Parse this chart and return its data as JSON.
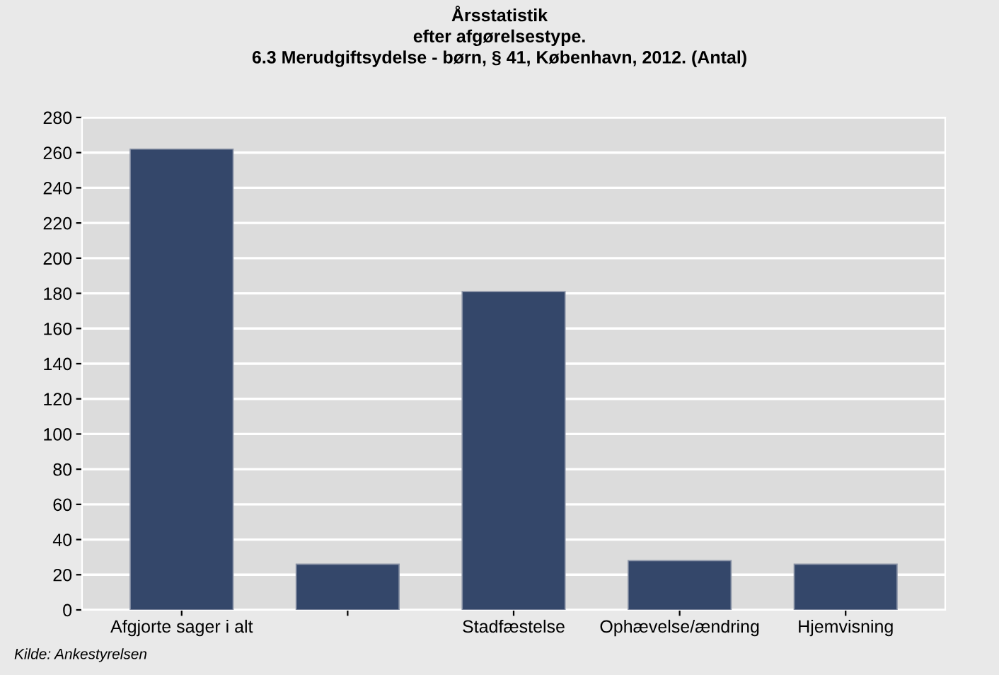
{
  "chart_data": {
    "type": "bar",
    "title": "Årsstatistik\nefter afgørelsestype.\n6.3 Merudgiftsydelse - børn, § 41, København, 2012. (Antal)",
    "categories": [
      "Afgjorte sager i alt",
      null,
      "Stadfæstelse",
      "Ophævelse/ændring",
      "Hjemvisning"
    ],
    "values": [
      262,
      26,
      181,
      28,
      26
    ],
    "color": "#34476a",
    "ylim": [
      0,
      280
    ],
    "yticks": [
      0,
      20,
      40,
      60,
      80,
      100,
      120,
      140,
      160,
      180,
      200,
      220,
      240,
      260,
      280
    ],
    "grid": "y",
    "annotations": [
      "Kilde: Ankestyrelsen"
    ]
  }
}
